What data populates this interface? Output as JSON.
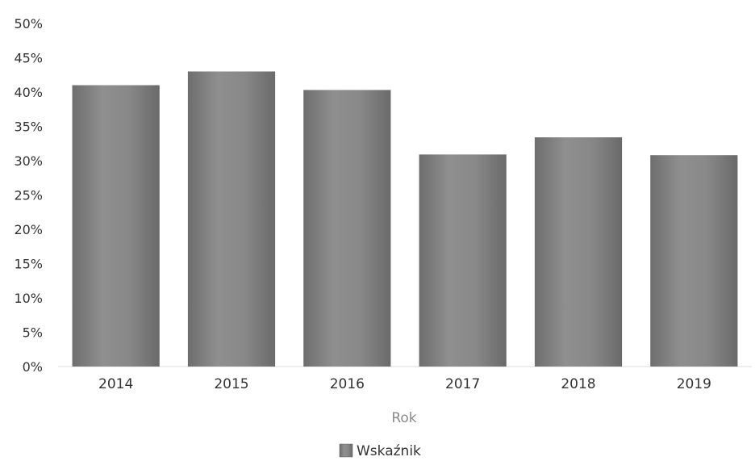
{
  "chart_data": {
    "type": "bar",
    "categories": [
      "2014",
      "2015",
      "2016",
      "2017",
      "2018",
      "2019"
    ],
    "series": [
      {
        "name": "Wskaźnik",
        "values": [
          41,
          43,
          40.3,
          30.9,
          33.4,
          30.8
        ],
        "color": "#808080"
      }
    ],
    "yticks": [
      "0%",
      "5%",
      "10%",
      "15%",
      "20%",
      "25%",
      "30%",
      "35%",
      "40%",
      "45%",
      "50%"
    ],
    "ylim": [
      0,
      50
    ],
    "y_unit": "%",
    "xlabel": "Rok",
    "ylabel": "",
    "title": "",
    "grid": false,
    "legend_position": "bottom-center"
  }
}
